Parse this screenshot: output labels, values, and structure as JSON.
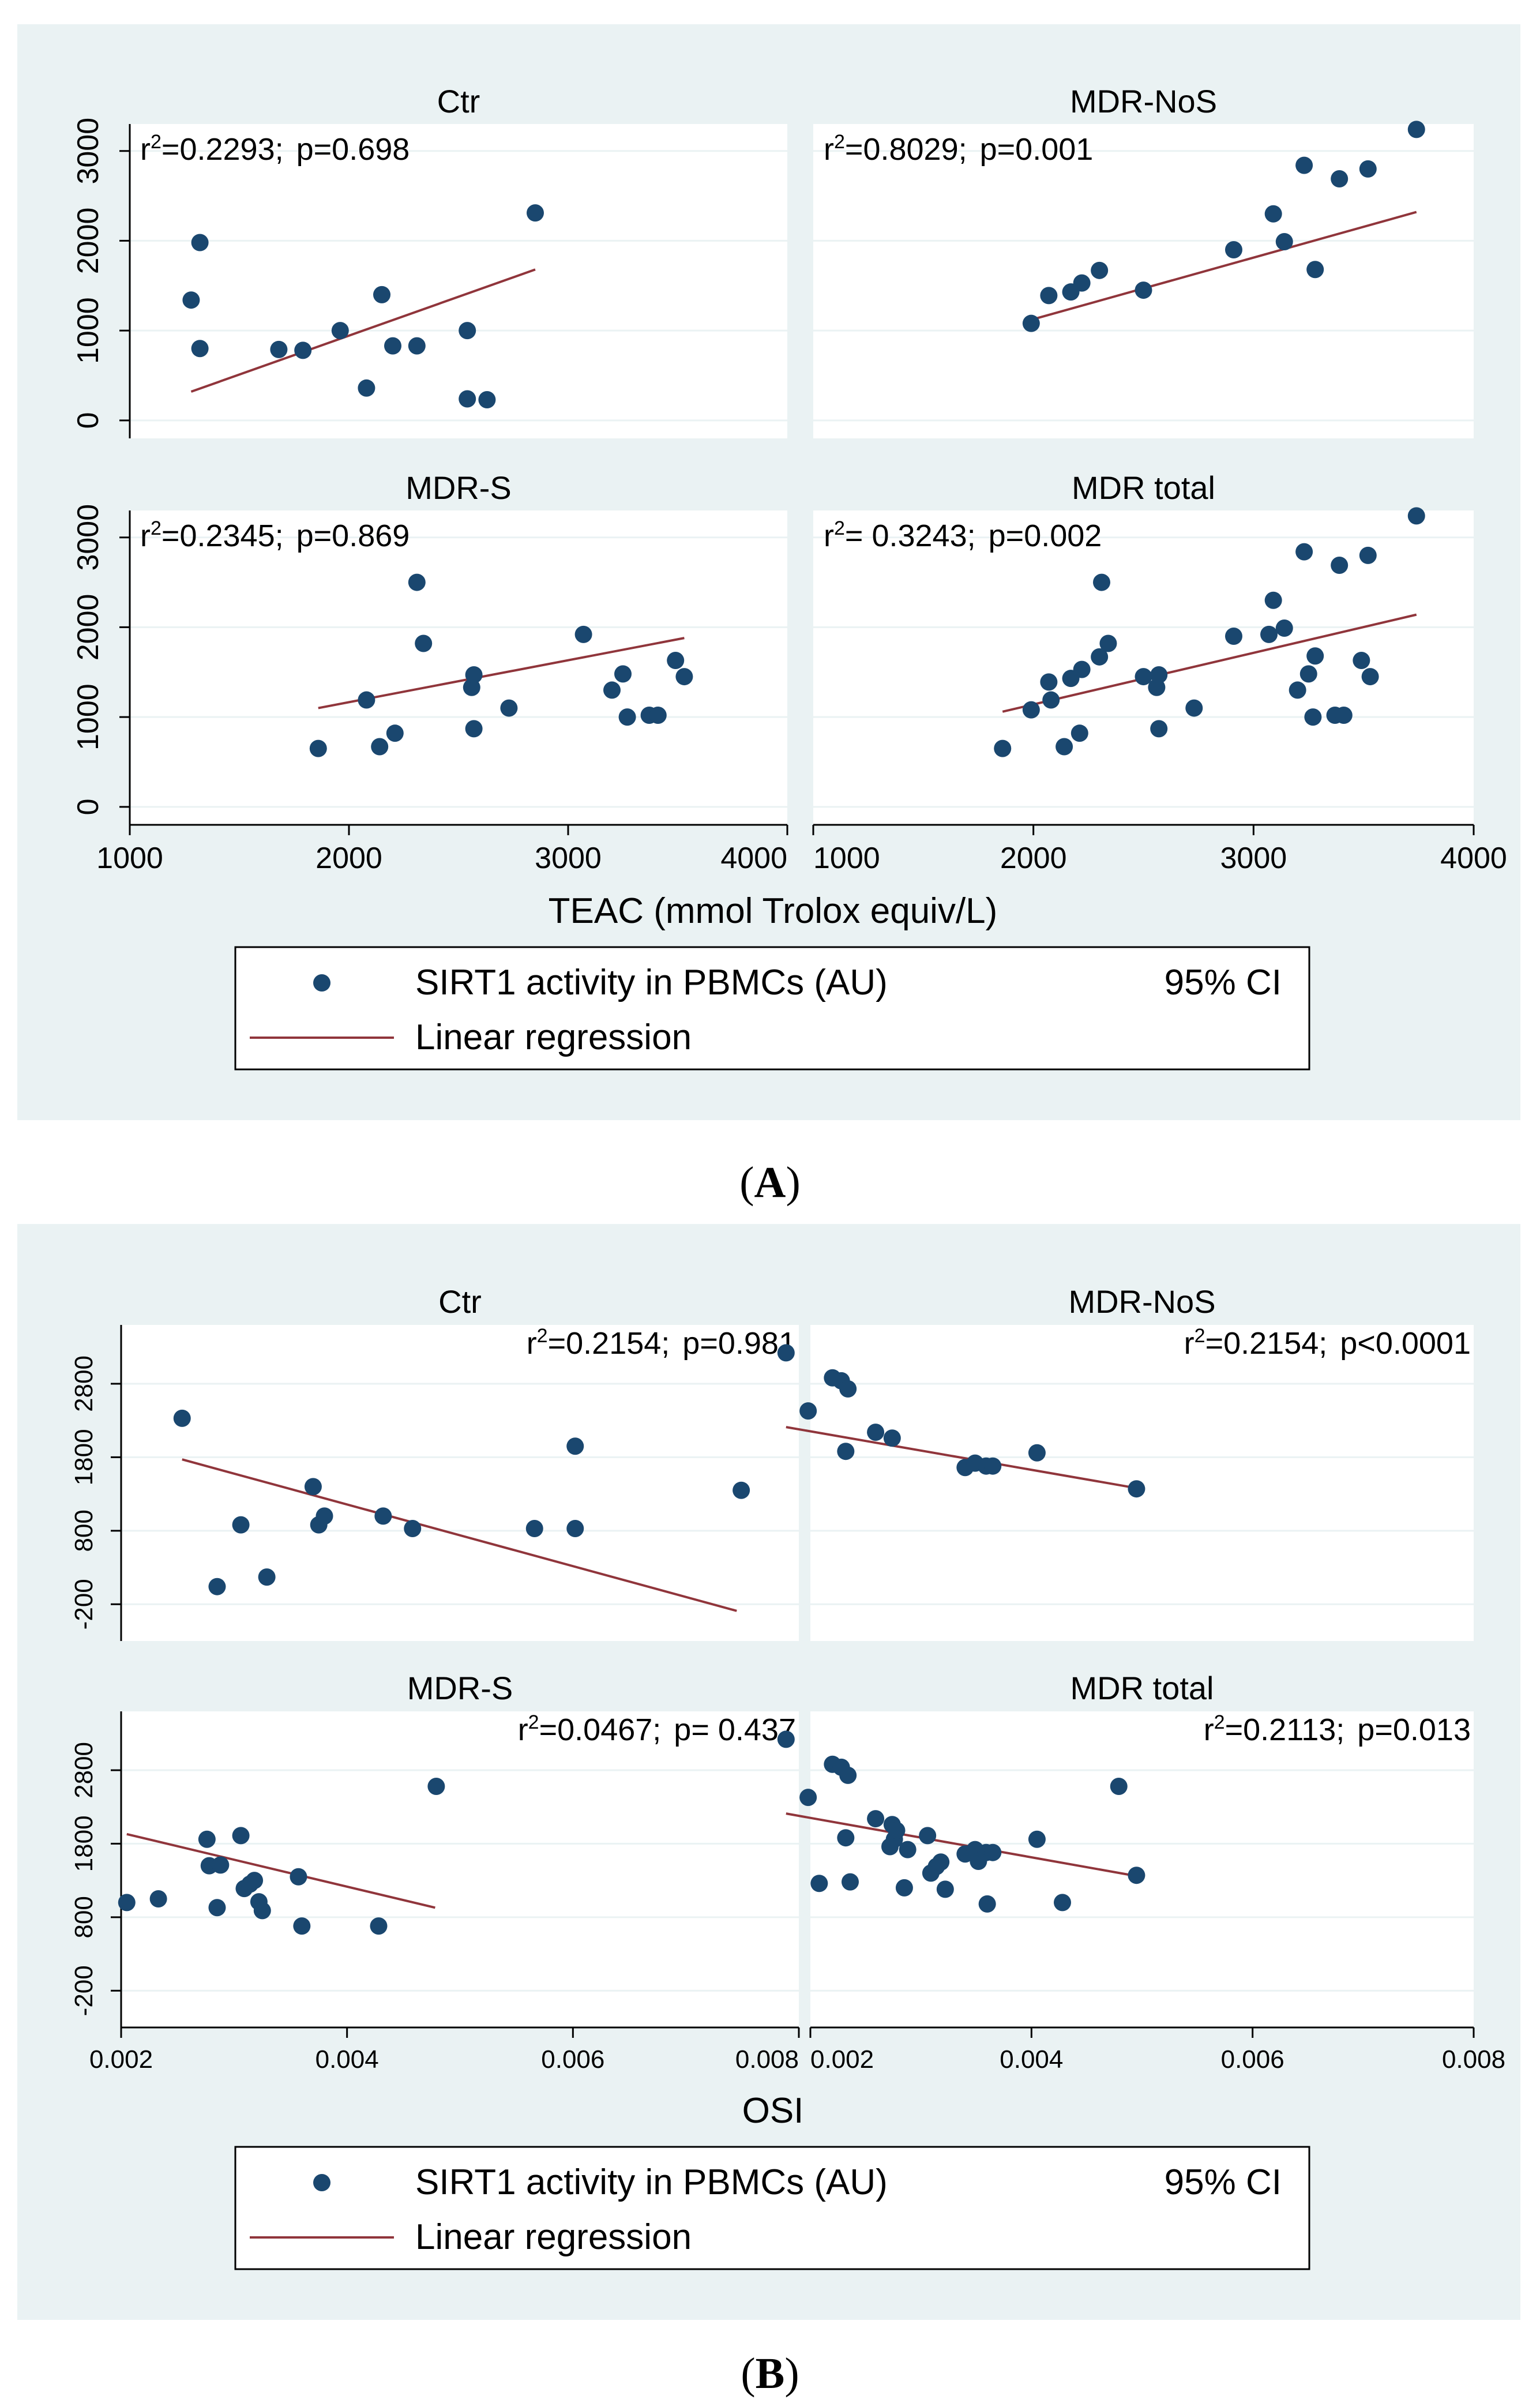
{
  "colors": {
    "figure_bg": "#eaf2f3",
    "panel_bg": "#ffffff",
    "strip_bg": "#eaf2f3",
    "grid": "#eaf2f3",
    "point": "#1a476f",
    "line": "#90353b"
  },
  "figure": {
    "caption_A": "A",
    "caption_B": "B"
  },
  "chart_data": [
    {
      "type": "scatter",
      "id": "A",
      "xlabel": "TEAC (mmol Trolox equiv/L)",
      "xlim": [
        1000,
        4000
      ],
      "ylim": [
        -200,
        3300
      ],
      "xticks": [
        "1000",
        "2000",
        "3000",
        "4000"
      ],
      "yticks": [
        "0",
        "1000",
        "2000",
        "3000"
      ],
      "legend": {
        "series": "SIRT1 activity in PBMCs (AU)",
        "ci": "95% CI",
        "fit": "Linear regression"
      },
      "panels": [
        {
          "title": "Ctr",
          "r2_prefix": "r",
          "r2_value": "=0.2293;",
          "p": "p=0.698",
          "points": [
            [
              1280,
              1340
            ],
            [
              1320,
              1980
            ],
            [
              1320,
              800
            ],
            [
              1680,
              790
            ],
            [
              1790,
              780
            ],
            [
              1960,
              1000
            ],
            [
              2080,
              360
            ],
            [
              2150,
              1400
            ],
            [
              2200,
              830
            ],
            [
              2310,
              830
            ],
            [
              2540,
              1000
            ],
            [
              2540,
              240
            ],
            [
              2630,
              230
            ],
            [
              2850,
              2310
            ]
          ],
          "fit": [
            [
              1280,
              320
            ],
            [
              2850,
              1680
            ]
          ]
        },
        {
          "title": "MDR-NoS",
          "r2_prefix": "r",
          "r2_value": "=0.8029;",
          "p": "p=0.001",
          "points": [
            [
              1990,
              1080
            ],
            [
              2070,
              1390
            ],
            [
              2170,
              1430
            ],
            [
              2220,
              1530
            ],
            [
              2300,
              1670
            ],
            [
              2500,
              1450
            ],
            [
              2910,
              1900
            ],
            [
              3090,
              2300
            ],
            [
              3140,
              1990
            ],
            [
              3230,
              2840
            ],
            [
              3280,
              1680
            ],
            [
              3390,
              2690
            ],
            [
              3520,
              2800
            ],
            [
              3740,
              3240
            ]
          ],
          "fit": [
            [
              1990,
              1120
            ],
            [
              3740,
              2320
            ]
          ]
        },
        {
          "title": "MDR-S",
          "r2_prefix": "r",
          "r2_value": "=0.2345;",
          "p": "p=0.869",
          "points": [
            [
              1860,
              650
            ],
            [
              2080,
              1190
            ],
            [
              2140,
              670
            ],
            [
              2210,
              820
            ],
            [
              2310,
              2500
            ],
            [
              2340,
              1820
            ],
            [
              2560,
              1330
            ],
            [
              2570,
              1470
            ],
            [
              2570,
              870
            ],
            [
              2730,
              1100
            ],
            [
              3070,
              1920
            ],
            [
              3200,
              1300
            ],
            [
              3250,
              1480
            ],
            [
              3270,
              1000
            ],
            [
              3370,
              1020
            ],
            [
              3410,
              1020
            ],
            [
              3490,
              1630
            ],
            [
              3530,
              1450
            ]
          ],
          "fit": [
            [
              1860,
              1100
            ],
            [
              3530,
              1880
            ]
          ]
        },
        {
          "title": "MDR total",
          "r2_prefix": "r",
          "r2_value": "= 0.3243;",
          "p": "p=0.002",
          "points": [
            [
              1860,
              650
            ],
            [
              1990,
              1080
            ],
            [
              2070,
              1390
            ],
            [
              2080,
              1190
            ],
            [
              2140,
              670
            ],
            [
              2170,
              1430
            ],
            [
              2210,
              820
            ],
            [
              2220,
              1530
            ],
            [
              2300,
              1670
            ],
            [
              2310,
              2500
            ],
            [
              2340,
              1820
            ],
            [
              2500,
              1450
            ],
            [
              2560,
              1330
            ],
            [
              2570,
              1470
            ],
            [
              2570,
              870
            ],
            [
              2730,
              1100
            ],
            [
              2910,
              1900
            ],
            [
              3070,
              1920
            ],
            [
              3090,
              2300
            ],
            [
              3140,
              1990
            ],
            [
              3200,
              1300
            ],
            [
              3230,
              2840
            ],
            [
              3250,
              1480
            ],
            [
              3270,
              1000
            ],
            [
              3280,
              1680
            ],
            [
              3370,
              1020
            ],
            [
              3390,
              2690
            ],
            [
              3410,
              1020
            ],
            [
              3490,
              1630
            ],
            [
              3520,
              2800
            ],
            [
              3530,
              1450
            ],
            [
              3740,
              3240
            ]
          ],
          "fit": [
            [
              1860,
              1060
            ],
            [
              3740,
              2140
            ]
          ]
        }
      ]
    },
    {
      "type": "scatter",
      "id": "B",
      "xlabel": "OSI",
      "xlim": [
        0.002,
        0.008
      ],
      "ylim": [
        -700,
        3600
      ],
      "xticks": [
        "0.002",
        "0.004",
        "0.006",
        "0.008"
      ],
      "yticks": [
        "-200",
        "800",
        "1800",
        "2800"
      ],
      "legend": {
        "series": "SIRT1 activity in PBMCs (AU)",
        "ci": "95% CI",
        "fit": "Linear regression"
      },
      "panels": [
        {
          "title": "Ctr",
          "r2_prefix": "r",
          "r2_value": "=0.2154;",
          "p": "p=0.981",
          "points": [
            [
              0.00254,
              2330
            ],
            [
              0.00285,
              40
            ],
            [
              0.00306,
              880
            ],
            [
              0.00329,
              170
            ],
            [
              0.0037,
              1400
            ],
            [
              0.00375,
              880
            ],
            [
              0.0038,
              1000
            ],
            [
              0.00432,
              1000
            ],
            [
              0.00458,
              830
            ],
            [
              0.00566,
              830
            ],
            [
              0.00602,
              1950
            ],
            [
              0.00602,
              830
            ],
            [
              0.00749,
              1350
            ]
          ],
          "fit": [
            [
              0.00254,
              1770
            ],
            [
              0.00745,
              -290
            ]
          ]
        },
        {
          "title": "MDR-NoS",
          "r2_prefix": "r",
          "r2_value": "=0.2154;",
          "p": "p<0.0001",
          "points": [
            [
              0.00178,
              3220
            ],
            [
              0.00198,
              2430
            ],
            [
              0.0022,
              2880
            ],
            [
              0.00228,
              2840
            ],
            [
              0.00234,
              2730
            ],
            [
              0.00232,
              1880
            ],
            [
              0.00259,
              2140
            ],
            [
              0.00274,
              2060
            ],
            [
              0.0034,
              1660
            ],
            [
              0.00349,
              1720
            ],
            [
              0.00359,
              1680
            ],
            [
              0.00365,
              1680
            ],
            [
              0.00405,
              1860
            ],
            [
              0.00495,
              1370
            ]
          ],
          "fit": [
            [
              0.00178,
              2210
            ],
            [
              0.00495,
              1380
            ]
          ]
        },
        {
          "title": "MDR-S",
          "r2_prefix": "r",
          "r2_value": "=0.0467;",
          "p": "p= 0.437",
          "points": [
            [
              0.00205,
              1000
            ],
            [
              0.00233,
              1050
            ],
            [
              0.00276,
              1860
            ],
            [
              0.00278,
              1500
            ],
            [
              0.00285,
              930
            ],
            [
              0.00288,
              1510
            ],
            [
              0.00306,
              1910
            ],
            [
              0.00309,
              1190
            ],
            [
              0.00314,
              1250
            ],
            [
              0.00318,
              1300
            ],
            [
              0.00322,
              1010
            ],
            [
              0.00325,
              890
            ],
            [
              0.00357,
              1350
            ],
            [
              0.0036,
              680
            ],
            [
              0.00428,
              680
            ],
            [
              0.00479,
              2580
            ]
          ],
          "fit": [
            [
              0.00205,
              1930
            ],
            [
              0.00478,
              930
            ]
          ]
        },
        {
          "title": "MDR total",
          "r2_prefix": "r",
          "r2_value": "=0.2113;",
          "p": "p=0.013",
          "points": [
            [
              0.00178,
              3220
            ],
            [
              0.00198,
              2430
            ],
            [
              0.00208,
              1260
            ],
            [
              0.0022,
              2880
            ],
            [
              0.00228,
              2840
            ],
            [
              0.00232,
              1880
            ],
            [
              0.00234,
              2730
            ],
            [
              0.00236,
              1280
            ],
            [
              0.00259,
              2140
            ],
            [
              0.00272,
              1760
            ],
            [
              0.00274,
              2060
            ],
            [
              0.00276,
              1860
            ],
            [
              0.00278,
              1980
            ],
            [
              0.00285,
              1200
            ],
            [
              0.00288,
              1720
            ],
            [
              0.00306,
              1910
            ],
            [
              0.00309,
              1400
            ],
            [
              0.00314,
              1490
            ],
            [
              0.00318,
              1550
            ],
            [
              0.00322,
              1180
            ],
            [
              0.0034,
              1660
            ],
            [
              0.00349,
              1720
            ],
            [
              0.00352,
              1560
            ],
            [
              0.00359,
              1680
            ],
            [
              0.0036,
              980
            ],
            [
              0.00365,
              1680
            ],
            [
              0.00405,
              1860
            ],
            [
              0.00428,
              1000
            ],
            [
              0.00479,
              2580
            ],
            [
              0.00495,
              1370
            ]
          ],
          "fit": [
            [
              0.00178,
              2210
            ],
            [
              0.00495,
              1360
            ]
          ]
        }
      ]
    }
  ]
}
